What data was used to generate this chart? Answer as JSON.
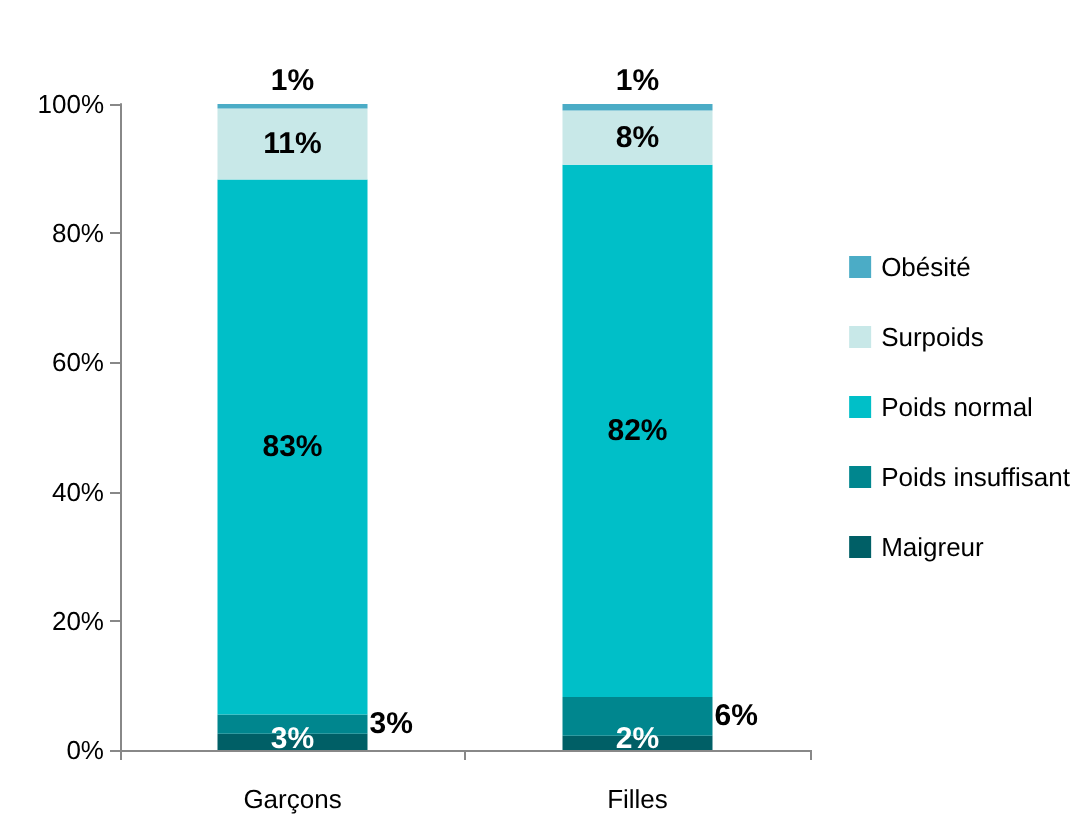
{
  "chart_data": {
    "type": "bar",
    "stacked": true,
    "categories": [
      "Garçons",
      "Filles"
    ],
    "series": [
      {
        "name": "Maigreur",
        "color": "#005f66",
        "values": [
          2.5,
          2.2
        ],
        "value_labels": [
          "3%",
          "2%"
        ]
      },
      {
        "name": "Poids insuffisant",
        "color": "#00868e",
        "values": [
          3,
          6
        ],
        "value_labels": [
          "3%",
          "6%"
        ]
      },
      {
        "name": "Poids normal",
        "color": "#00bfc8",
        "values": [
          82.8,
          82.4
        ],
        "value_labels": [
          "83%",
          "82%"
        ]
      },
      {
        "name": "Surpoids",
        "color": "#c8e8e8",
        "values": [
          11,
          8.4
        ],
        "value_labels": [
          "11%",
          "8%"
        ]
      },
      {
        "name": "Obésité",
        "color": "#4bacc6",
        "values": [
          0.7,
          1
        ],
        "value_labels": [
          "1%",
          "1%"
        ]
      }
    ],
    "ylim": [
      0,
      100
    ],
    "yticks": [
      {
        "value": 0,
        "label": "0%"
      },
      {
        "value": 20,
        "label": "20%"
      },
      {
        "value": 40,
        "label": "40%"
      },
      {
        "value": 60,
        "label": "60%"
      },
      {
        "value": 80,
        "label": "80%"
      },
      {
        "value": 100,
        "label": "100%"
      }
    ],
    "grid": false,
    "legend": "right"
  }
}
